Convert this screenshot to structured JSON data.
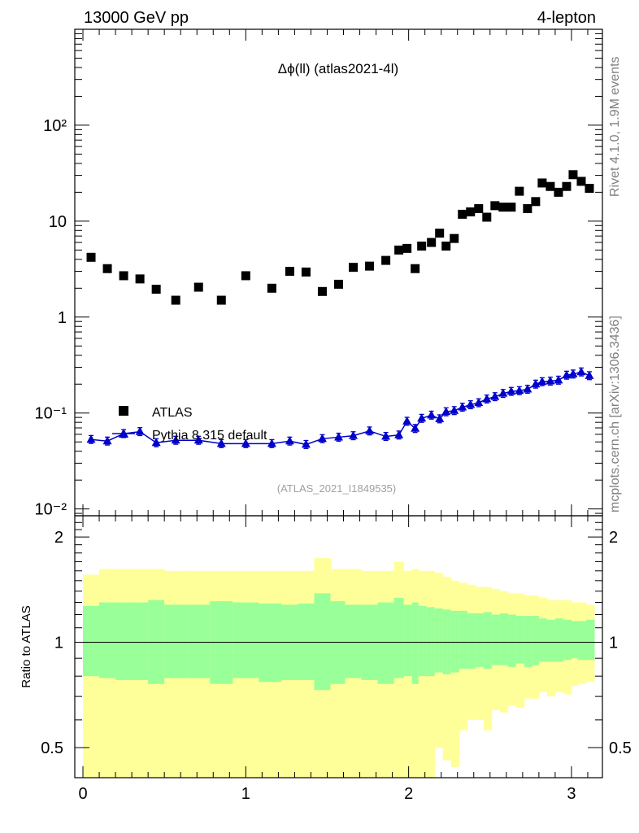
{
  "header": {
    "left_label": "13000 GeV pp",
    "right_label": "4-lepton",
    "plot_title": "Δϕ(ll) (atlas2021-4l)",
    "analysis_id": "(ATLAS_2021_I1849535)",
    "side_label_top": "Rivet 4.1.0,  1.9M events",
    "side_label_bottom": "mcplots.cern.ch [arXiv:1306.3436]"
  },
  "legend": {
    "data_label": "ATLAS",
    "mc_label": "Pythia 8.315 default"
  },
  "colors": {
    "data": "#000000",
    "mc": "#0000cc",
    "band_inner": "#99ff99",
    "band_outer": "#ffff99",
    "axis": "#000000"
  },
  "chart_data": [
    {
      "type": "scatter",
      "panel": "main",
      "yscale": "log",
      "xlim": [
        -0.05,
        3.19
      ],
      "ylim": [
        0.0085,
        1000
      ],
      "ytick_labels": [
        "10⁻²",
        "10⁻¹",
        "1",
        "10",
        "10²"
      ],
      "ytick_values": [
        0.01,
        0.1,
        1,
        10,
        100
      ],
      "series": [
        {
          "name": "ATLAS",
          "marker": "square",
          "x": [
            0.05,
            0.15,
            0.25,
            0.35,
            0.45,
            0.57,
            0.71,
            0.85,
            1.0,
            1.16,
            1.27,
            1.37,
            1.47,
            1.57,
            1.66,
            1.76,
            1.86,
            1.94,
            1.99,
            2.04,
            2.08,
            2.14,
            2.19,
            2.23,
            2.28,
            2.33,
            2.38,
            2.43,
            2.48,
            2.53,
            2.58,
            2.63,
            2.68,
            2.73,
            2.78,
            2.82,
            2.87,
            2.92,
            2.97,
            3.01,
            3.06,
            3.11
          ],
          "y": [
            4.2,
            3.2,
            2.7,
            2.5,
            1.95,
            1.5,
            2.05,
            1.5,
            2.7,
            2.0,
            3.0,
            2.95,
            1.85,
            2.2,
            3.3,
            3.4,
            3.9,
            5.0,
            5.2,
            3.2,
            5.5,
            6.0,
            7.5,
            5.5,
            6.6,
            11.8,
            12.5,
            13.5,
            11.0,
            14.5,
            14.0,
            14.0,
            20.5,
            13.5,
            16.0,
            25.0,
            23.0,
            20.0,
            23.0,
            30.5,
            26.0,
            22.0
          ]
        },
        {
          "name": "Pythia 8.315 default",
          "marker": "triangle",
          "x": [
            0.05,
            0.15,
            0.25,
            0.35,
            0.45,
            0.57,
            0.71,
            0.85,
            1.0,
            1.16,
            1.27,
            1.37,
            1.47,
            1.57,
            1.66,
            1.76,
            1.86,
            1.94,
            1.99,
            2.04,
            2.08,
            2.14,
            2.19,
            2.23,
            2.28,
            2.33,
            2.38,
            2.43,
            2.48,
            2.53,
            2.58,
            2.63,
            2.68,
            2.73,
            2.78,
            2.82,
            2.87,
            2.92,
            2.97,
            3.01,
            3.06,
            3.11
          ],
          "y": [
            0.053,
            0.051,
            0.061,
            0.064,
            0.049,
            0.052,
            0.052,
            0.048,
            0.048,
            0.048,
            0.051,
            0.047,
            0.054,
            0.056,
            0.058,
            0.065,
            0.057,
            0.059,
            0.082,
            0.069,
            0.088,
            0.095,
            0.087,
            0.103,
            0.106,
            0.115,
            0.122,
            0.128,
            0.14,
            0.148,
            0.16,
            0.168,
            0.171,
            0.177,
            0.2,
            0.212,
            0.215,
            0.22,
            0.248,
            0.255,
            0.268,
            0.245
          ]
        }
      ]
    },
    {
      "type": "area",
      "panel": "ratio",
      "ylabel": "Ratio to ATLAS",
      "xlim": [
        -0.05,
        3.19
      ],
      "ylim": [
        0.41,
        2.3
      ],
      "ytick_labels": [
        "0.5",
        "1",
        "2"
      ],
      "ytick_values": [
        0.5,
        1,
        2
      ],
      "xtick_labels": [
        "0",
        "1",
        "2",
        "3"
      ],
      "xtick_values": [
        0,
        1,
        2,
        3
      ],
      "reference": 1.0,
      "bin_edges": [
        0,
        0.1,
        0.2,
        0.3,
        0.4,
        0.5,
        0.64,
        0.78,
        0.92,
        1.08,
        1.22,
        1.32,
        1.42,
        1.52,
        1.61,
        1.71,
        1.81,
        1.91,
        1.97,
        2.02,
        2.06,
        2.11,
        2.16,
        2.21,
        2.26,
        2.31,
        2.36,
        2.41,
        2.46,
        2.51,
        2.56,
        2.61,
        2.66,
        2.71,
        2.76,
        2.8,
        2.85,
        2.9,
        2.95,
        3.0,
        3.04,
        3.09,
        3.14
      ],
      "inner_band_lo": [
        0.8,
        0.79,
        0.78,
        0.78,
        0.76,
        0.79,
        0.79,
        0.76,
        0.79,
        0.77,
        0.78,
        0.78,
        0.73,
        0.76,
        0.79,
        0.78,
        0.76,
        0.79,
        0.8,
        0.76,
        0.8,
        0.8,
        0.82,
        0.81,
        0.82,
        0.84,
        0.84,
        0.85,
        0.84,
        0.86,
        0.86,
        0.85,
        0.87,
        0.85,
        0.86,
        0.88,
        0.88,
        0.88,
        0.89,
        0.9,
        0.89,
        0.89
      ],
      "inner_band_hi": [
        1.27,
        1.3,
        1.3,
        1.3,
        1.32,
        1.28,
        1.28,
        1.31,
        1.3,
        1.29,
        1.28,
        1.29,
        1.38,
        1.31,
        1.28,
        1.28,
        1.3,
        1.34,
        1.28,
        1.3,
        1.27,
        1.26,
        1.25,
        1.24,
        1.23,
        1.23,
        1.21,
        1.21,
        1.22,
        1.2,
        1.21,
        1.2,
        1.19,
        1.19,
        1.19,
        1.17,
        1.16,
        1.17,
        1.16,
        1.15,
        1.15,
        1.16
      ],
      "outer_band_lo": [
        0.41,
        0.41,
        0.41,
        0.41,
        0.41,
        0.41,
        0.41,
        0.41,
        0.41,
        0.41,
        0.41,
        0.41,
        0.41,
        0.41,
        0.41,
        0.41,
        0.41,
        0.41,
        0.41,
        0.41,
        0.41,
        0.41,
        0.5,
        0.46,
        0.44,
        0.56,
        0.6,
        0.6,
        0.56,
        0.64,
        0.63,
        0.66,
        0.65,
        0.69,
        0.69,
        0.72,
        0.7,
        0.72,
        0.71,
        0.75,
        0.76,
        0.77
      ],
      "outer_band_hi": [
        1.56,
        1.62,
        1.62,
        1.62,
        1.62,
        1.6,
        1.6,
        1.6,
        1.6,
        1.6,
        1.6,
        1.6,
        1.74,
        1.62,
        1.62,
        1.6,
        1.6,
        1.7,
        1.6,
        1.62,
        1.6,
        1.6,
        1.58,
        1.54,
        1.5,
        1.48,
        1.46,
        1.44,
        1.44,
        1.42,
        1.4,
        1.38,
        1.38,
        1.36,
        1.36,
        1.34,
        1.32,
        1.32,
        1.32,
        1.3,
        1.3,
        1.28
      ],
      "ratio_line": [
        1,
        1,
        1,
        1,
        1,
        1,
        1,
        1,
        1,
        1,
        1,
        1,
        1,
        1,
        1,
        1,
        1,
        1,
        1,
        1,
        1,
        1,
        1,
        1,
        1,
        1,
        1,
        1,
        1,
        1,
        1,
        1,
        1,
        1,
        1,
        1,
        1,
        1,
        1,
        1,
        1,
        1
      ]
    }
  ]
}
